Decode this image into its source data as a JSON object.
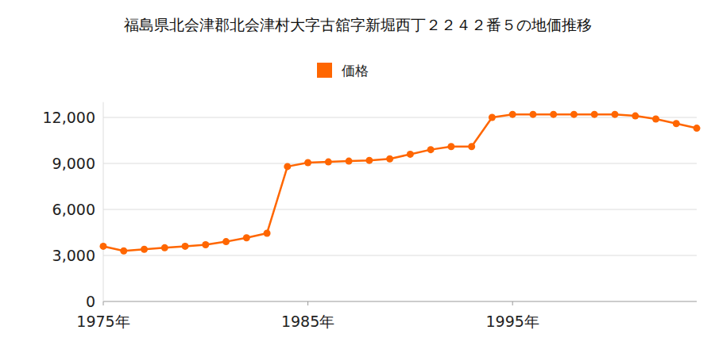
{
  "chart_data": {
    "type": "line",
    "title": "福島県北会津郡北会津村大字古舘字新堀西丁２２４２番５の地価推移",
    "x": [
      1975,
      1976,
      1977,
      1978,
      1979,
      1980,
      1981,
      1982,
      1983,
      1984,
      1985,
      1986,
      1987,
      1988,
      1989,
      1990,
      1991,
      1992,
      1993,
      1994,
      1995,
      1996,
      1997,
      1998,
      1999,
      2000,
      2001,
      2002,
      2003,
      2004
    ],
    "series": [
      {
        "name": "価格",
        "color": "#ff6600",
        "marker": "circle",
        "values": [
          3600,
          3300,
          3400,
          3500,
          3600,
          3700,
          3900,
          4150,
          4450,
          8800,
          9050,
          9100,
          9150,
          9200,
          9300,
          9600,
          9900,
          10100,
          10100,
          12000,
          12200,
          12200,
          12200,
          12200,
          12200,
          12200,
          12100,
          11900,
          11600,
          11300
        ]
      }
    ],
    "xlim": [
      1975,
      2004
    ],
    "xticks": [
      {
        "value": 1975,
        "label": "1975年"
      },
      {
        "value": 1985,
        "label": "1985年"
      },
      {
        "value": 1995,
        "label": "1995年"
      }
    ],
    "ylim": [
      0,
      13000
    ],
    "yticks": [
      0,
      {
        "value": 3000,
        "label": "3,000"
      },
      {
        "value": 6000,
        "label": "6,000"
      },
      {
        "value": 9000,
        "label": "9,000"
      },
      {
        "value": 12000,
        "label": "12,000"
      }
    ],
    "grid": true,
    "legend": "top"
  }
}
